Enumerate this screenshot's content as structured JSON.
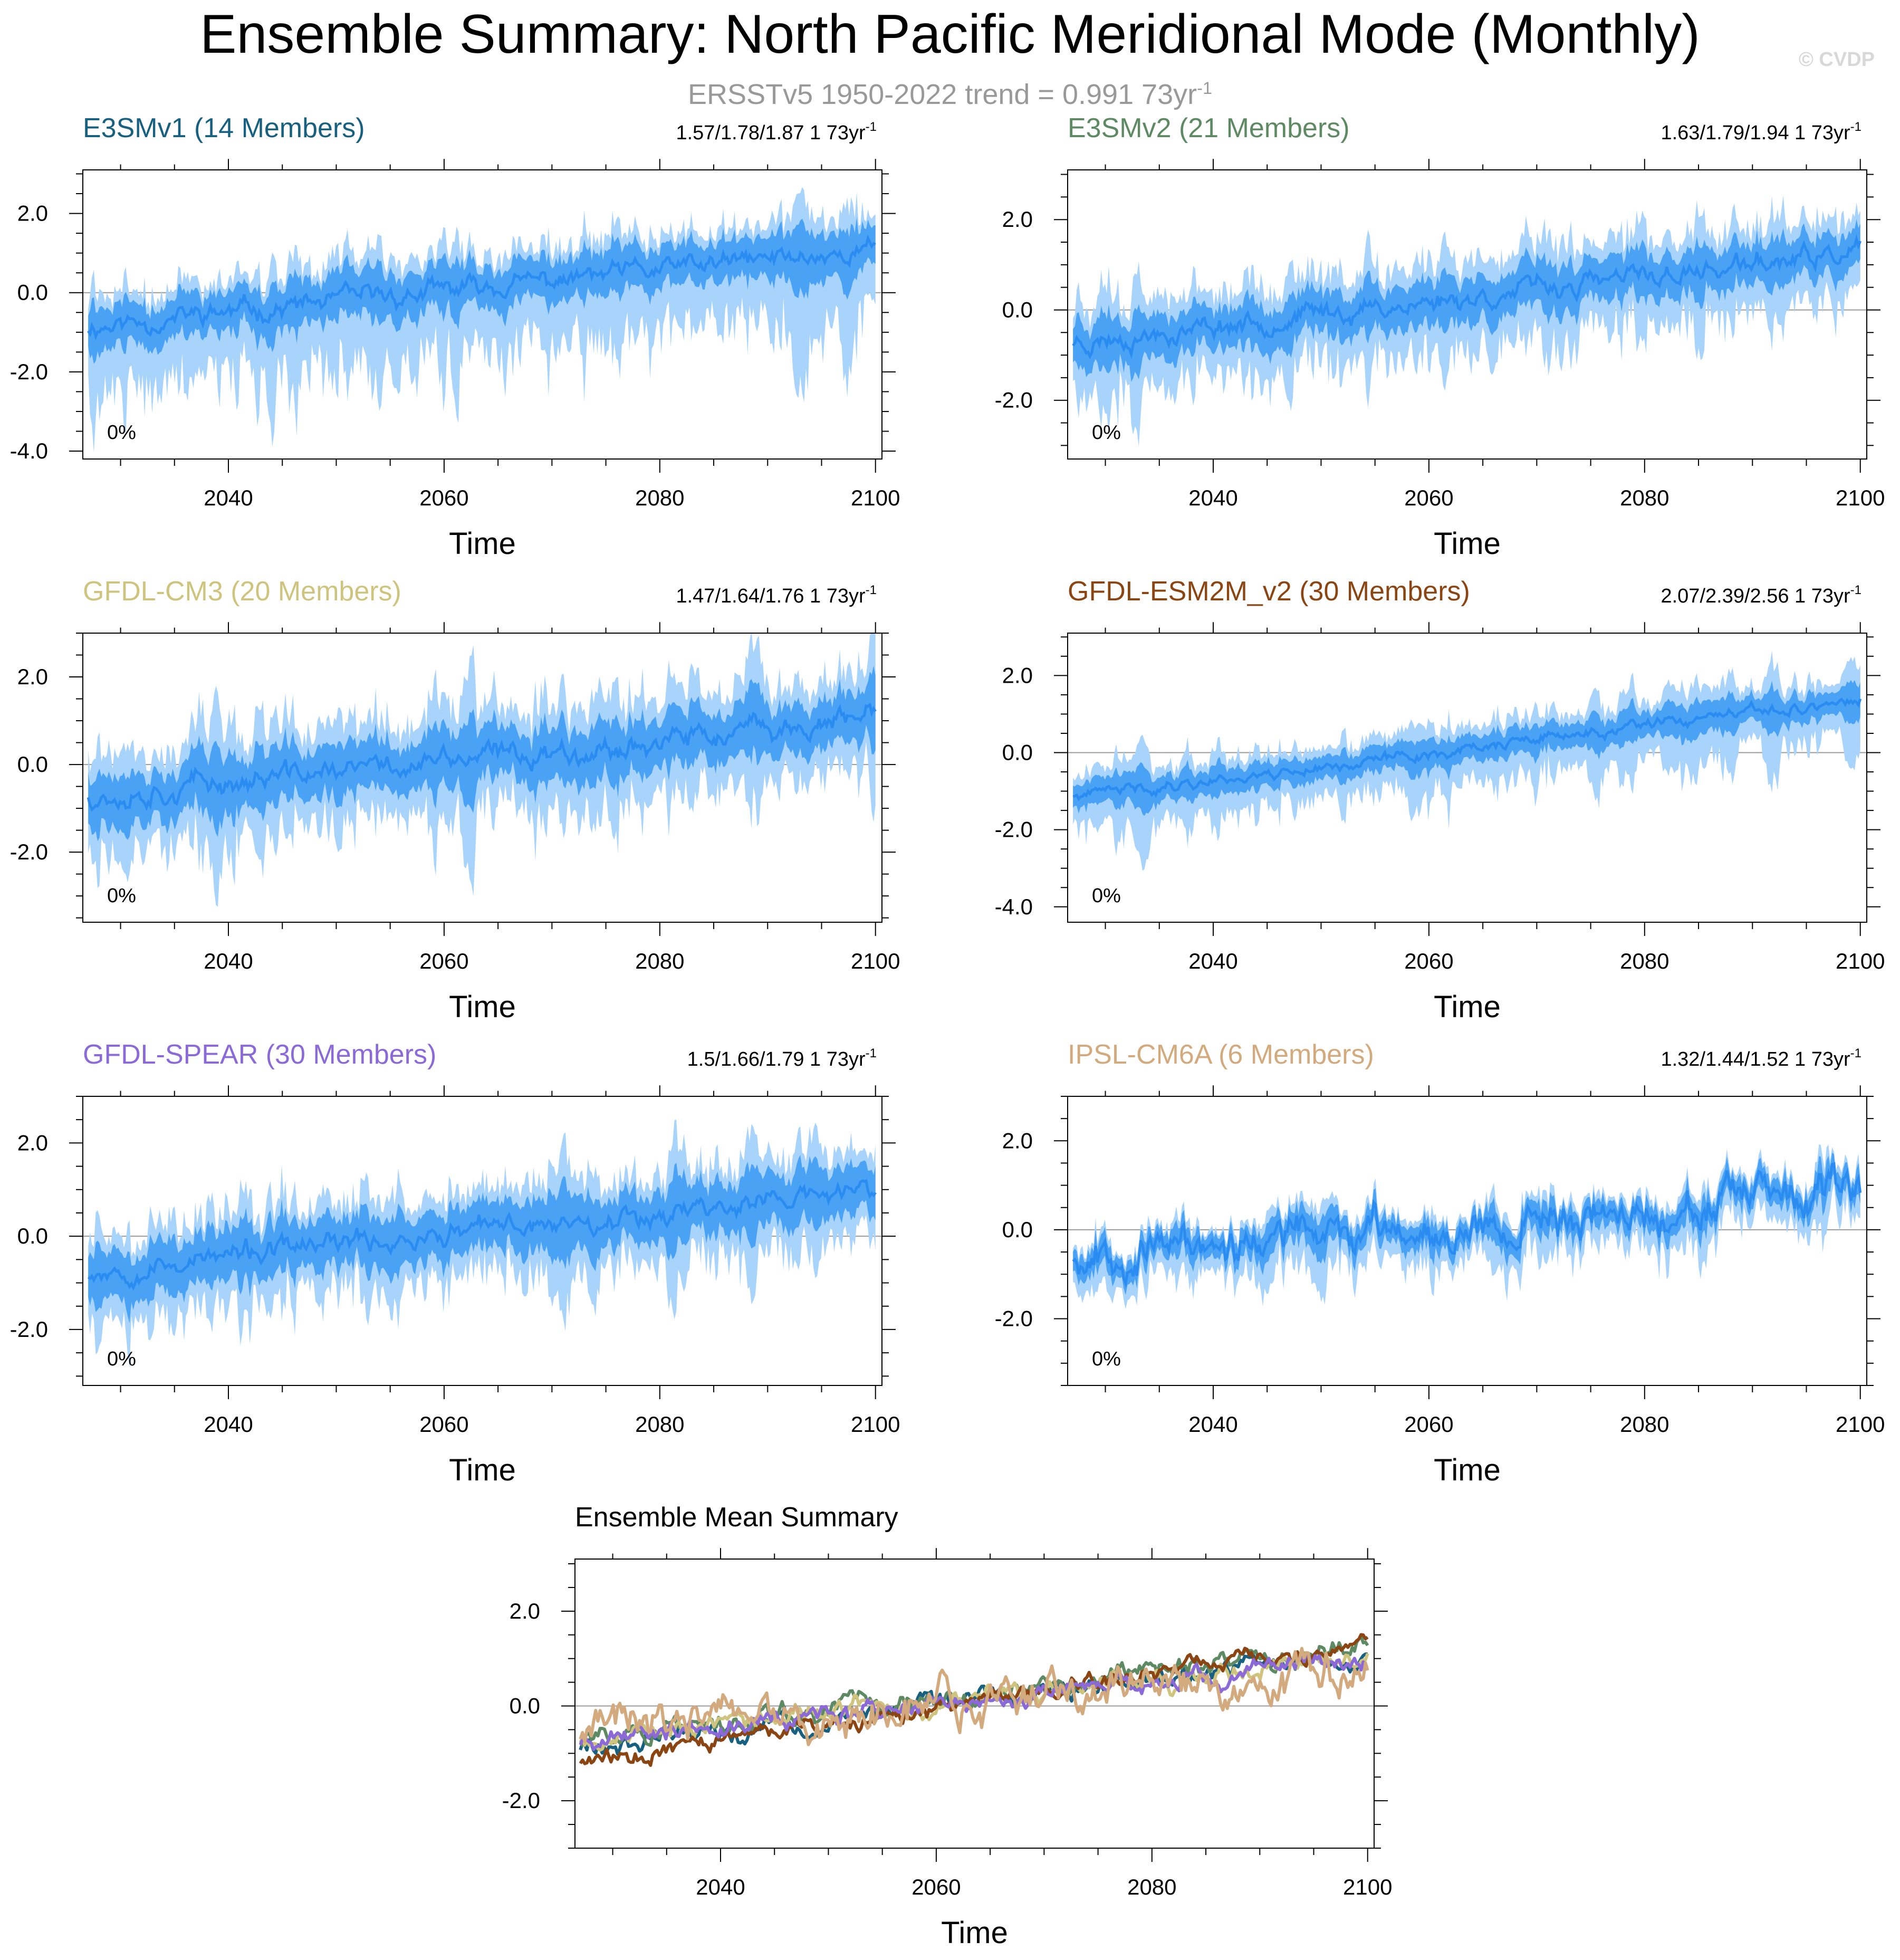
{
  "figure": {
    "title": "Ensemble Summary: North Pacific Meridional Mode (Monthly)",
    "subtitle_text": "ERSSTv5 1950-2022 trend = 0.991 73yr",
    "subtitle_sup": "-1",
    "watermark": "© CVDP"
  },
  "colors": {
    "band_outer": "#a8d3fb",
    "band_inner": "#4aa2f5",
    "band_mean": "#2a8cf0",
    "zero_line": "#9a9a9a",
    "axis": "#000000"
  },
  "chart_data": [
    {
      "type": "area",
      "id": "e3smv1",
      "title": "E3SMv1 (14 Members)",
      "title_color": "#17607f",
      "trend_text": "1.57/1.78/1.87 1 73yr",
      "trend_sup": "-1",
      "percent_label": "0%",
      "xlabel": "Time",
      "xlim": [
        2026.5,
        2100.6
      ],
      "ylim": [
        -4.2,
        3.1
      ],
      "xticks": [
        2040,
        2060,
        2080,
        2100
      ],
      "yticks": [
        -4.0,
        -2.0,
        0.0,
        2.0
      ],
      "ytick_labels": [
        "-4.0",
        "-2.0",
        "0.0",
        "2.0"
      ],
      "series": {
        "start": 2027,
        "end": 2100,
        "mean_start": -0.85,
        "mean_end": 1.1,
        "inner_spread": 0.55,
        "outer_lo": 1.75,
        "outer_hi": 0.9,
        "noise": 0.45,
        "seed": 11
      }
    },
    {
      "type": "area",
      "id": "e3smv2",
      "title": "E3SMv2 (21 Members)",
      "title_color": "#5e8a63",
      "trend_text": "1.63/1.79/1.94 1 73yr",
      "trend_sup": "-1",
      "percent_label": "0%",
      "xlabel": "Time",
      "xlim": [
        2026.5,
        2100.6
      ],
      "ylim": [
        -3.3,
        3.1
      ],
      "xticks": [
        2040,
        2060,
        2080,
        2100
      ],
      "yticks": [
        -2.0,
        0.0,
        2.0
      ],
      "ytick_labels": [
        "-2.0",
        "0.0",
        "2.0"
      ],
      "series": {
        "start": 2027,
        "end": 2100,
        "mean_start": -0.7,
        "mean_end": 1.25,
        "inner_spread": 0.5,
        "outer_lo": 1.2,
        "outer_hi": 0.95,
        "noise": 0.4,
        "seed": 23
      }
    },
    {
      "type": "area",
      "id": "gfdl-cm3",
      "title": "GFDL-CM3 (20 Members)",
      "title_color": "#cfc47e",
      "trend_text": "1.47/1.64/1.76 1 73yr",
      "trend_sup": "-1",
      "percent_label": "0%",
      "xlabel": "Time",
      "xlim": [
        2026.5,
        2100.6
      ],
      "ylim": [
        -3.6,
        3.0
      ],
      "xticks": [
        2040,
        2060,
        2080,
        2100
      ],
      "yticks": [
        -2.0,
        0.0,
        2.0
      ],
      "ytick_labels": [
        "-2.0",
        "0.0",
        "2.0"
      ],
      "series": {
        "start": 2027,
        "end": 2100,
        "mean_start": -0.7,
        "mean_end": 1.0,
        "inner_spread": 0.6,
        "outer_lo": 1.3,
        "outer_hi": 1.15,
        "noise": 0.45,
        "seed": 37
      }
    },
    {
      "type": "area",
      "id": "gfdl-esm2m",
      "title": "GFDL-ESM2M_v2 (30 Members)",
      "title_color": "#8b4513",
      "trend_text": "2.07/2.39/2.56 1 73yr",
      "trend_sup": "-1",
      "percent_label": "0%",
      "xlabel": "Time",
      "xlim": [
        2026.5,
        2100.6
      ],
      "ylim": [
        -4.4,
        3.1
      ],
      "xticks": [
        2040,
        2060,
        2080,
        2100
      ],
      "yticks": [
        -4.0,
        -2.0,
        0.0,
        2.0
      ],
      "ytick_labels": [
        "-4.0",
        "-2.0",
        "0.0",
        "2.0"
      ],
      "series": {
        "start": 2027,
        "end": 2100,
        "mean_start": -1.15,
        "mean_end": 1.35,
        "inner_spread": 0.35,
        "outer_lo": 0.95,
        "outer_hi": 0.65,
        "noise": 0.25,
        "seed": 41
      }
    },
    {
      "type": "area",
      "id": "gfdl-spear",
      "title": "GFDL-SPEAR (30 Members)",
      "title_color": "#8b6ad8",
      "trend_text": "1.5/1.66/1.79 1 73yr",
      "trend_sup": "-1",
      "percent_label": "0%",
      "xlabel": "Time",
      "xlim": [
        2026.5,
        2100.6
      ],
      "ylim": [
        -3.2,
        3.0
      ],
      "xticks": [
        2040,
        2060,
        2080,
        2100
      ],
      "yticks": [
        -2.0,
        0.0,
        2.0
      ],
      "ytick_labels": [
        "-2.0",
        "0.0",
        "2.0"
      ],
      "series": {
        "start": 2027,
        "end": 2100,
        "mean_start": -0.75,
        "mean_end": 1.0,
        "inner_spread": 0.55,
        "outer_lo": 1.1,
        "outer_hi": 0.95,
        "noise": 0.4,
        "seed": 53
      }
    },
    {
      "type": "area",
      "id": "ipsl-cm6a",
      "title": "IPSL-CM6A (6 Members)",
      "title_color": "#d2aa7d",
      "trend_text": "1.32/1.44/1.52 1 73yr",
      "trend_sup": "-1",
      "percent_label": "0%",
      "xlabel": "Time",
      "xlim": [
        2026.5,
        2100.6
      ],
      "ylim": [
        -3.5,
        3.0
      ],
      "xticks": [
        2040,
        2060,
        2080,
        2100
      ],
      "yticks": [
        -2.0,
        0.0,
        2.0
      ],
      "ytick_labels": [
        "-2.0",
        "0.0",
        "2.0"
      ],
      "series": {
        "start": 2027,
        "end": 2100,
        "mean_start": -0.55,
        "mean_end": 0.75,
        "inner_spread": 0.3,
        "outer_lo": 0.7,
        "outer_hi": 0.45,
        "noise": 0.75,
        "seed": 67
      }
    },
    {
      "type": "line",
      "id": "ensemble-mean",
      "title": "Ensemble Mean Summary",
      "title_color": "#000000",
      "xlabel": "Time",
      "xlim": [
        2026.5,
        2100.6
      ],
      "ylim": [
        -3.0,
        3.1
      ],
      "xticks": [
        2040,
        2060,
        2080,
        2100
      ],
      "yticks": [
        -2.0,
        0.0,
        2.0
      ],
      "ytick_labels": [
        "-2.0",
        "0.0",
        "2.0"
      ],
      "series": [
        {
          "name": "E3SMv1",
          "color": "#17607f",
          "start_value": -0.85,
          "end_value": 1.1,
          "noise": 0.3,
          "seed": 111
        },
        {
          "name": "E3SMv2",
          "color": "#5e8a63",
          "start_value": -0.7,
          "end_value": 1.25,
          "noise": 0.3,
          "seed": 122
        },
        {
          "name": "GFDL-CM3",
          "color": "#cfc47e",
          "start_value": -0.7,
          "end_value": 1.0,
          "noise": 0.3,
          "seed": 133
        },
        {
          "name": "GFDL-ESM2M_v2",
          "color": "#8b4513",
          "start_value": -1.15,
          "end_value": 1.35,
          "noise": 0.25,
          "seed": 144
        },
        {
          "name": "GFDL-SPEAR",
          "color": "#8b6ad8",
          "start_value": -0.75,
          "end_value": 1.0,
          "noise": 0.28,
          "seed": 155
        },
        {
          "name": "IPSL-CM6A",
          "color": "#d2aa7d",
          "start_value": -0.55,
          "end_value": 0.75,
          "noise": 0.6,
          "seed": 166
        }
      ]
    }
  ]
}
